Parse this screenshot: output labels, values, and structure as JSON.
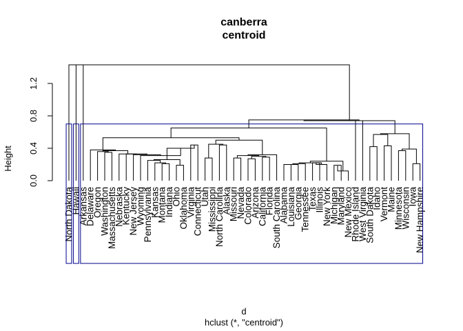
{
  "chart_data": {
    "type": "dendrogram",
    "title": [
      "canberra",
      "centroid"
    ],
    "xlabel": "d",
    "sub": "hclust (*, \"centroid\")",
    "ylabel": "Height",
    "ylim": [
      0,
      1.45
    ],
    "yticks": [
      0.0,
      0.4,
      0.8,
      1.2
    ],
    "ytick_labels": [
      "0.0",
      "0.4",
      "0.8",
      "1.2"
    ],
    "rect_color": "#00008B",
    "leaves": [
      "North Dakota",
      "Hawaii",
      "Arkansas",
      "Delaware",
      "Oregon",
      "Washington",
      "Massachusetts",
      "Nebraska",
      "Kentucky",
      "New Jersey",
      "Wyoming",
      "Pennsylvania",
      "Kansas",
      "Montana",
      "Indiana",
      "Ohio",
      "Oklahoma",
      "Virginia",
      "Connecticut",
      "Utah",
      "Mississippi",
      "North Carolina",
      "Alaska",
      "Missouri",
      "Nevada",
      "Colorado",
      "Arizona",
      "California",
      "Florida",
      "South Carolina",
      "Alabama",
      "Louisiana",
      "Georgia",
      "Tennessee",
      "Texas",
      "Illinois",
      "New York",
      "Michigan",
      "Maryland",
      "New Mexico",
      "Rhode Island",
      "West Virginia",
      "South Dakota",
      "Idaho",
      "Vermont",
      "Maine",
      "Minnesota",
      "Wisconsin",
      "Iowa",
      "New Hampshire"
    ],
    "merges": [
      [
        -43,
        -44,
        0.42
      ],
      [
        -45,
        -46,
        0.43
      ],
      [
        1,
        2,
        0.57
      ],
      [
        -47,
        -48,
        0.37
      ],
      [
        -49,
        -50,
        0.21
      ],
      [
        4,
        5,
        0.39
      ],
      [
        3,
        6,
        0.58
      ],
      [
        -14,
        -15,
        0.21
      ],
      [
        -13,
        8,
        0.22
      ],
      [
        -12,
        9,
        0.25
      ],
      [
        -16,
        -17,
        0.19
      ],
      [
        10,
        11,
        0.26
      ],
      [
        -18,
        -19,
        0.44
      ],
      [
        12,
        13,
        0.4
      ],
      [
        -11,
        14,
        0.31
      ],
      [
        -10,
        15,
        0.32
      ],
      [
        -9,
        16,
        0.33
      ],
      [
        -8,
        17,
        0.33
      ],
      [
        -6,
        -7,
        0.35
      ],
      [
        -5,
        19,
        0.36
      ],
      [
        18,
        20,
        0.37
      ],
      [
        -4,
        21,
        0.38
      ],
      [
        -20,
        -21,
        0.28
      ],
      [
        -22,
        -23,
        0.44
      ],
      [
        23,
        24,
        0.45
      ],
      [
        -24,
        -25,
        0.28
      ],
      [
        -26,
        -27,
        0.27
      ],
      [
        -28,
        -29,
        0.29
      ],
      [
        27,
        28,
        0.3
      ],
      [
        26,
        29,
        0.31
      ],
      [
        -30,
        30,
        0.32
      ],
      [
        25,
        31,
        0.5
      ],
      [
        22,
        32,
        0.53
      ],
      [
        -31,
        -32,
        0.2
      ],
      [
        -33,
        34,
        0.2
      ],
      [
        -34,
        35,
        0.21
      ],
      [
        -35,
        -36,
        0.22
      ],
      [
        -37,
        37,
        0.2
      ],
      [
        36,
        38,
        0.22
      ],
      [
        -38,
        -39,
        0.19
      ],
      [
        -40,
        40,
        0.12
      ],
      [
        39,
        41,
        0.24
      ],
      [
        33,
        42,
        0.65
      ],
      [
        -41,
        -42,
        0.74
      ],
      [
        43,
        44,
        0.75
      ],
      [
        7,
        45,
        0.74
      ],
      [
        -3,
        46,
        1.43
      ],
      [
        -2,
        47,
        1.43
      ],
      [
        -1,
        48,
        1.43
      ]
    ],
    "rect_groups": [
      [
        1,
        1
      ],
      [
        2,
        2
      ],
      [
        3,
        50
      ]
    ]
  }
}
